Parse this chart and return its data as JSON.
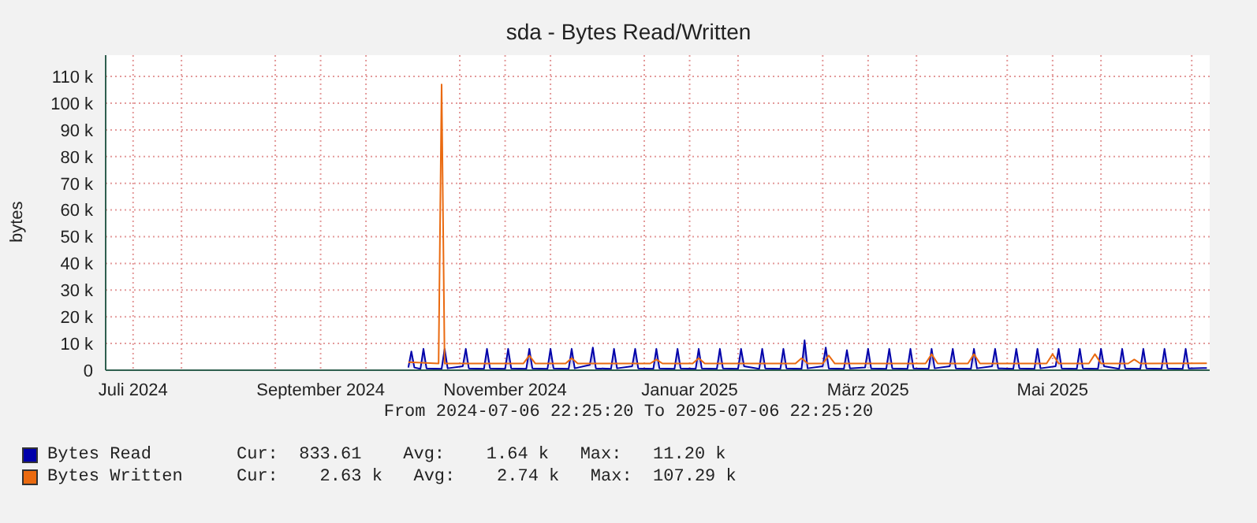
{
  "chart_data": {
    "type": "line",
    "title": "sda - Bytes Read/Written",
    "ylabel": "bytes",
    "xlim": [
      "2024-07-06T22:25",
      "2025-07-06T22:25"
    ],
    "xticks": [
      {
        "value": "2024-07-16",
        "label": "Juli 2024"
      },
      {
        "value": "2024-08-01",
        "label": null
      },
      {
        "value": "2024-09-01",
        "label": null
      },
      {
        "value": "2024-09-16",
        "label": "September 2024"
      },
      {
        "value": "2024-10-01",
        "label": null
      },
      {
        "value": "2024-11-01",
        "label": null
      },
      {
        "value": "2024-11-16",
        "label": "November 2024"
      },
      {
        "value": "2024-12-01",
        "label": null
      },
      {
        "value": "2025-01-01",
        "label": null
      },
      {
        "value": "2025-01-16",
        "label": "Januar 2025"
      },
      {
        "value": "2025-02-01",
        "label": null
      },
      {
        "value": "2025-03-01",
        "label": null
      },
      {
        "value": "2025-03-16",
        "label": "März 2025"
      },
      {
        "value": "2025-04-01",
        "label": null
      },
      {
        "value": "2025-05-01",
        "label": null
      },
      {
        "value": "2025-05-16",
        "label": "Mai 2025"
      },
      {
        "value": "2025-06-01",
        "label": null
      },
      {
        "value": "2025-07-01",
        "label": null
      }
    ],
    "ylim": [
      0,
      118000
    ],
    "yticks": [
      0,
      {
        "value": 10000,
        "label": "10 k"
      },
      {
        "value": 20000,
        "label": "20 k"
      },
      {
        "value": 30000,
        "label": "30 k"
      },
      {
        "value": 40000,
        "label": "40 k"
      },
      {
        "value": 50000,
        "label": "50 k"
      },
      {
        "value": 60000,
        "label": "60 k"
      },
      {
        "value": 70000,
        "label": "70 k"
      },
      {
        "value": 80000,
        "label": "80 k"
      },
      {
        "value": 90000,
        "label": "90 k"
      },
      {
        "value": 100000,
        "label": "100 k"
      },
      {
        "value": 110000,
        "label": "110 k"
      }
    ],
    "grid": true,
    "legend": "bottom",
    "line_style": "solid",
    "annotations": [
      "From 2024-07-06 22:25:20 To 2025-07-06 22:25:20",
      "Cur:  833.61    Avg:    1.64 k   Max:   11.20 k",
      "Cur:    2.63 k   Avg:    2.74 k   Max:  107.29 k"
    ],
    "series": [
      {
        "name": "Bytes Read",
        "type": "area",
        "color": "#0000aa",
        "x": [
          "2024-10-15",
          "2024-10-16",
          "2024-10-17",
          "2024-10-19",
          "2024-10-20",
          "2024-10-21",
          "2024-10-26",
          "2024-10-27",
          "2024-10-28",
          "2024-11-02",
          "2024-11-03",
          "2024-11-04",
          "2024-11-09",
          "2024-11-10",
          "2024-11-11",
          "2024-11-16",
          "2024-11-17",
          "2024-11-18",
          "2024-11-23",
          "2024-11-24",
          "2024-11-25",
          "2024-11-30",
          "2024-12-01",
          "2024-12-02",
          "2024-12-07",
          "2024-12-08",
          "2024-12-09",
          "2024-12-14",
          "2024-12-15",
          "2024-12-16",
          "2024-12-21",
          "2024-12-22",
          "2024-12-23",
          "2024-12-28",
          "2024-12-29",
          "2024-12-30",
          "2025-01-04",
          "2025-01-05",
          "2025-01-06",
          "2025-01-11",
          "2025-01-12",
          "2025-01-13",
          "2025-01-18",
          "2025-01-19",
          "2025-01-20",
          "2025-01-25",
          "2025-01-26",
          "2025-01-27",
          "2025-02-01",
          "2025-02-02",
          "2025-02-03",
          "2025-02-08",
          "2025-02-09",
          "2025-02-10",
          "2025-02-15",
          "2025-02-16",
          "2025-02-17",
          "2025-02-22",
          "2025-02-23",
          "2025-02-24",
          "2025-03-01",
          "2025-03-02",
          "2025-03-03",
          "2025-03-08",
          "2025-03-09",
          "2025-03-10",
          "2025-03-15",
          "2025-03-16",
          "2025-03-17",
          "2025-03-22",
          "2025-03-23",
          "2025-03-24",
          "2025-03-29",
          "2025-03-30",
          "2025-03-31",
          "2025-04-05",
          "2025-04-06",
          "2025-04-07",
          "2025-04-12",
          "2025-04-13",
          "2025-04-14",
          "2025-04-19",
          "2025-04-20",
          "2025-04-21",
          "2025-04-26",
          "2025-04-27",
          "2025-04-28",
          "2025-05-03",
          "2025-05-04",
          "2025-05-05",
          "2025-05-10",
          "2025-05-11",
          "2025-05-12",
          "2025-05-17",
          "2025-05-18",
          "2025-05-19",
          "2025-05-24",
          "2025-05-25",
          "2025-05-26",
          "2025-05-31",
          "2025-06-01",
          "2025-06-02",
          "2025-06-07",
          "2025-06-08",
          "2025-06-09",
          "2025-06-14",
          "2025-06-15",
          "2025-06-16",
          "2025-06-21",
          "2025-06-22",
          "2025-06-23",
          "2025-06-28",
          "2025-06-29",
          "2025-06-30",
          "2025-07-06"
        ],
        "values": [
          1000,
          7000,
          1000,
          500,
          8000,
          700,
          500,
          8000,
          700,
          1500,
          8000,
          700,
          500,
          8000,
          700,
          500,
          8000,
          700,
          500,
          8000,
          700,
          500,
          8000,
          700,
          500,
          8000,
          700,
          2000,
          8500,
          700,
          500,
          8000,
          700,
          1500,
          8000,
          700,
          500,
          8000,
          700,
          500,
          8000,
          700,
          500,
          8000,
          700,
          500,
          8000,
          700,
          500,
          8000,
          1500,
          500,
          8000,
          700,
          500,
          8000,
          700,
          500,
          11200,
          700,
          1500,
          8500,
          700,
          500,
          7500,
          700,
          1000,
          8000,
          700,
          500,
          8000,
          700,
          500,
          8000,
          700,
          500,
          8000,
          700,
          1500,
          8000,
          700,
          500,
          8000,
          700,
          1500,
          8000,
          700,
          500,
          8000,
          700,
          500,
          8000,
          700,
          1500,
          8000,
          700,
          500,
          8000,
          700,
          500,
          8000,
          1500,
          500,
          8000,
          700,
          500,
          8000,
          700,
          500,
          8000,
          700,
          500,
          8000,
          700,
          830
        ]
      },
      {
        "name": "Bytes Written",
        "type": "line",
        "color": "#ea6a10",
        "x": [
          "2024-10-15",
          "2024-10-25",
          "2024-10-26",
          "2024-10-27",
          "2024-11-10",
          "2024-11-22",
          "2024-11-24",
          "2024-11-26",
          "2024-12-06",
          "2024-12-08",
          "2024-12-10",
          "2025-01-03",
          "2025-01-05",
          "2025-01-07",
          "2025-01-17",
          "2025-01-19",
          "2025-01-21",
          "2025-02-20",
          "2025-02-22",
          "2025-02-24",
          "2025-03-01",
          "2025-03-03",
          "2025-03-05",
          "2025-04-04",
          "2025-04-06",
          "2025-04-08",
          "2025-04-18",
          "2025-04-20",
          "2025-04-22",
          "2025-05-14",
          "2025-05-16",
          "2025-05-18",
          "2025-05-28",
          "2025-05-30",
          "2025-06-01",
          "2025-06-10",
          "2025-06-12",
          "2025-06-14",
          "2025-07-06"
        ],
        "values": [
          3000,
          2500,
          107000,
          2500,
          2500,
          2500,
          5500,
          2500,
          2500,
          4500,
          2500,
          2500,
          4000,
          2500,
          2500,
          4500,
          2500,
          2500,
          4500,
          2500,
          2500,
          5500,
          2500,
          2500,
          6000,
          2500,
          2500,
          6000,
          2500,
          2500,
          6000,
          2500,
          2500,
          6000,
          2500,
          2500,
          4000,
          2500,
          2600
        ]
      }
    ]
  }
}
